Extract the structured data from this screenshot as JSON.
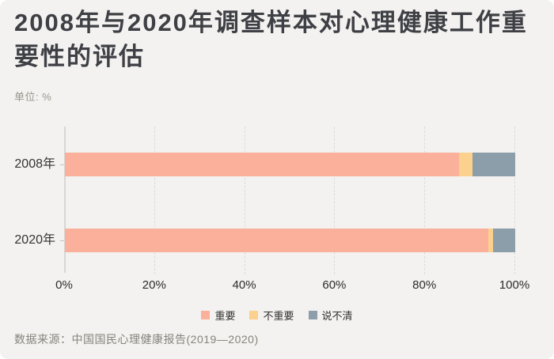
{
  "title": "2008年与2020年调查样本对心理健康工作重要性的评估",
  "unit_label": "单位: %",
  "source": "数据来源：中国国民心理健康报告(2019—2020)",
  "colors": {
    "background": "#f3f2f0",
    "title_text": "#3f4045",
    "muted_text": "#87837d",
    "axis_line": "#d8d7d4",
    "gridline": "#dddbd7",
    "important": "#fbb09b",
    "not_important": "#fcd08d",
    "unclear": "#8c9ea9"
  },
  "chart_data": {
    "type": "bar",
    "orientation": "horizontal",
    "stacked": true,
    "categories": [
      "2008年",
      "2020年"
    ],
    "series": [
      {
        "name": "重要",
        "color": "#fbb09b",
        "values": [
          87.5,
          94.0
        ]
      },
      {
        "name": "不重要",
        "color": "#fcd08d",
        "values": [
          3.0,
          1.0
        ]
      },
      {
        "name": "说不清",
        "color": "#8c9ea9",
        "values": [
          9.5,
          5.0
        ]
      }
    ],
    "x_ticks": [
      "0%",
      "20%",
      "40%",
      "60%",
      "80%",
      "100%"
    ],
    "x_tick_values": [
      0,
      20,
      40,
      60,
      80,
      100
    ],
    "xlim": [
      0,
      100
    ],
    "grid": "dashed-vertical",
    "legend_position": "bottom",
    "title": "2008年与2020年调查样本对心理健康工作重要性的评估",
    "ylabel": "",
    "xlabel": ""
  }
}
